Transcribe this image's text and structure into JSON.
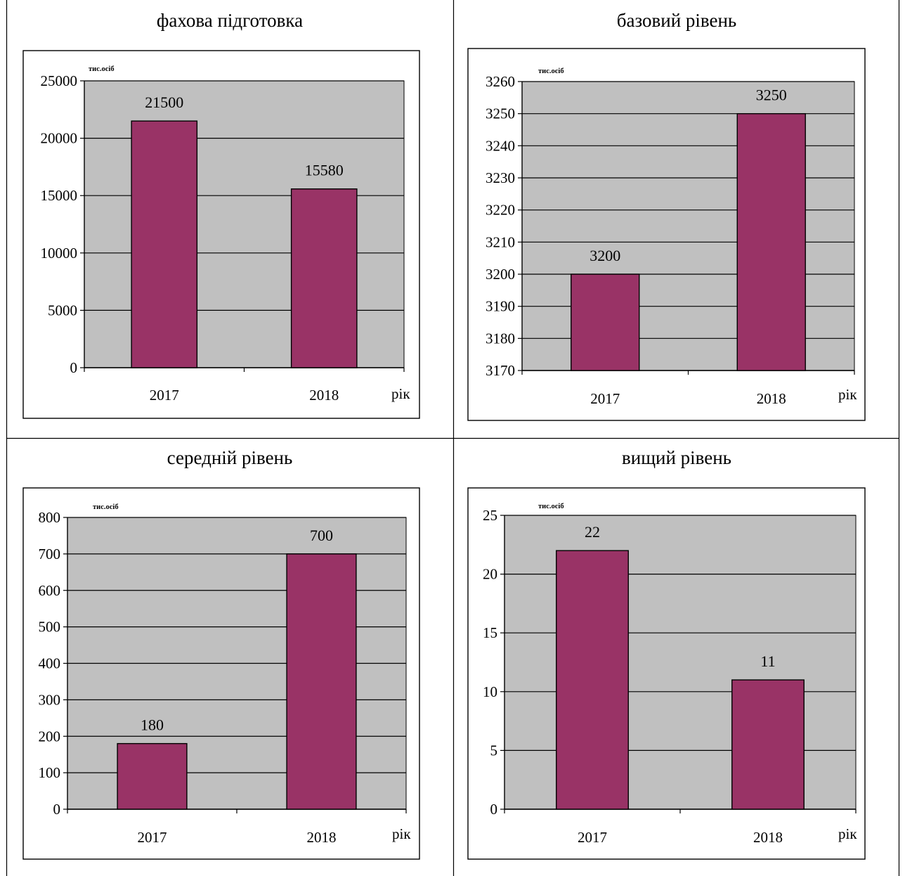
{
  "charts": [
    {
      "title": "фахова підготовка",
      "chart_data": {
        "type": "bar",
        "categories": [
          "2017",
          "2018"
        ],
        "values": [
          21500,
          15580
        ],
        "ylabel": "тис.осіб",
        "xlabel": "рік",
        "ylim": [
          0,
          25000
        ],
        "yticks": [
          0,
          5000,
          10000,
          15000,
          20000,
          25000
        ],
        "grid": true
      }
    },
    {
      "title": "базовий рівень",
      "chart_data": {
        "type": "bar",
        "categories": [
          "2017",
          "2018"
        ],
        "values": [
          3200,
          3250
        ],
        "ylabel": "тис.осіб",
        "xlabel": "рік",
        "ylim": [
          3170,
          3260
        ],
        "yticks": [
          3170,
          3180,
          3190,
          3200,
          3210,
          3220,
          3230,
          3240,
          3250,
          3260
        ],
        "grid": true
      }
    },
    {
      "title": "середній рівень",
      "chart_data": {
        "type": "bar",
        "categories": [
          "2017",
          "2018"
        ],
        "values": [
          180,
          700
        ],
        "ylabel": "тис.осіб",
        "xlabel": "рік",
        "ylim": [
          0,
          800
        ],
        "yticks": [
          0,
          100,
          200,
          300,
          400,
          500,
          600,
          700,
          800
        ],
        "grid": true
      }
    },
    {
      "title": "вищий рівень",
      "chart_data": {
        "type": "bar",
        "categories": [
          "2017",
          "2018"
        ],
        "values": [
          22,
          11
        ],
        "ylabel": "тис.осіб",
        "xlabel": "рік",
        "ylim": [
          0,
          25
        ],
        "yticks": [
          0,
          5,
          10,
          15,
          20,
          25
        ],
        "grid": true
      }
    }
  ],
  "colors": {
    "bar": "#993366",
    "plot_area": "#c0c0c0",
    "axis": "#000000"
  }
}
